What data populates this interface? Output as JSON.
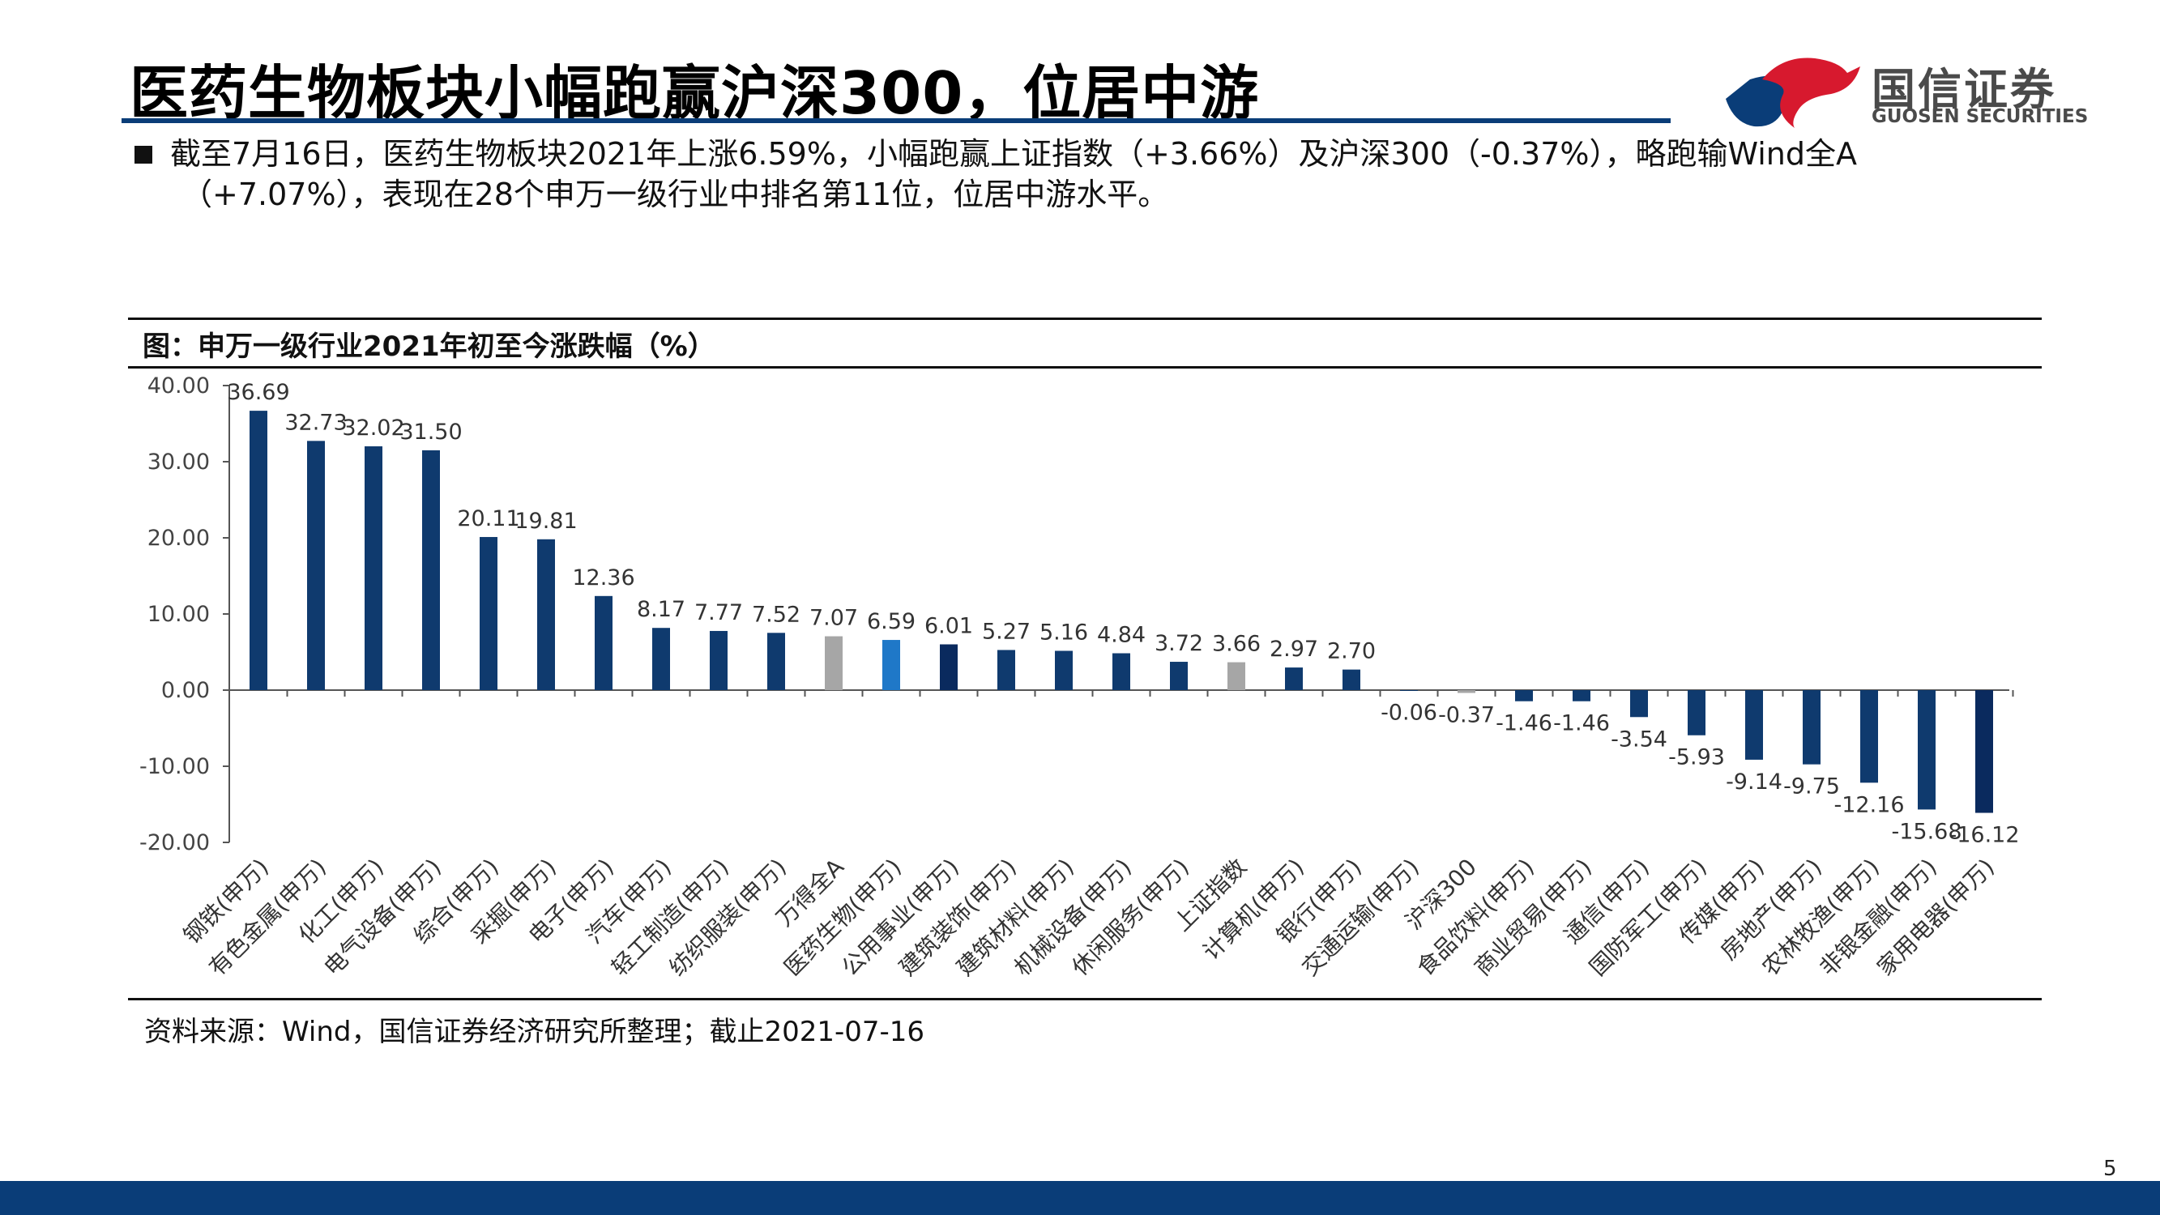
{
  "page": {
    "title": "医药生物板块小幅跑赢沪深300，位居中游",
    "bullet_line1": "截至7月16日，医药生物板块2021年上涨6.59%，小幅跑赢上证指数（+3.66%）及沪深300（-0.37%），略跑输Wind全A",
    "bullet_line2": "（+7.07%），表现在28个申万一级行业中排名第11位，位居中游水平。",
    "chart_caption": "图：申万一级行业2021年初至今涨跌幅（%）",
    "source": "资料来源：Wind，国信证券经济研究所整理；截止2021-07-16",
    "page_number": "5"
  },
  "logo": {
    "name_cn": "国信证券",
    "name_en": "GUOSEN SECURITIES"
  },
  "colors": {
    "default_bar": "#0f3a6e",
    "highlight_bar": "#1f78c8",
    "benchmark_bar": "#a6a6a6",
    "accent_dark": "#0a2a5e",
    "brand_red": "#d7192e",
    "brand_blue": "#0a3d78"
  },
  "chart_data": {
    "type": "bar",
    "ylim": [
      -20,
      40
    ],
    "yticks": [
      40,
      30,
      20,
      10,
      0,
      -10,
      -20
    ],
    "ytick_labels": [
      "40.00",
      "30.00",
      "20.00",
      "10.00",
      "0.00",
      "-10.00",
      "-20.00"
    ],
    "categories": [
      "钢铁(申万)",
      "有色金属(申万)",
      "化工(申万)",
      "电气设备(申万)",
      "综合(申万)",
      "采掘(申万)",
      "电子(申万)",
      "汽车(申万)",
      "轻工制造(申万)",
      "纺织服装(申万)",
      "万得全A",
      "医药生物(申万)",
      "公用事业(申万)",
      "建筑装饰(申万)",
      "建筑材料(申万)",
      "机械设备(申万)",
      "休闲服务(申万)",
      "上证指数",
      "计算机(申万)",
      "银行(申万)",
      "交通运输(申万)",
      "沪深300",
      "食品饮料(申万)",
      "商业贸易(申万)",
      "通信(申万)",
      "国防军工(申万)",
      "传媒(申万)",
      "房地产(申万)",
      "农林牧渔(申万)",
      "非银金融(申万)",
      "家用电器(申万)"
    ],
    "values": [
      36.69,
      32.73,
      32.02,
      31.5,
      20.11,
      19.81,
      12.36,
      8.17,
      7.77,
      7.52,
      7.07,
      6.59,
      6.01,
      5.27,
      5.16,
      4.84,
      3.72,
      3.66,
      2.97,
      2.7,
      -0.06,
      -0.37,
      -1.46,
      -1.46,
      -3.54,
      -5.93,
      -9.14,
      -9.75,
      -12.16,
      -15.68,
      -16.12
    ],
    "labels": [
      "36.69",
      "32.73",
      "32.02",
      "31.50",
      "20.11",
      "19.81",
      "12.36",
      "8.17",
      "7.77",
      "7.52",
      "7.07",
      "6.59",
      "6.01",
      "5.27",
      "5.16",
      "4.84",
      "3.72",
      "3.66",
      "2.97",
      "2.70",
      "-0.06",
      "-0.37",
      "-1.46",
      "-1.46",
      "-3.54",
      "-5.93",
      "-9.14",
      "-9.75",
      "-12.16",
      "-15.68",
      "-16.12"
    ],
    "bar_colors": [
      "#0f3a6e",
      "#0f3a6e",
      "#0f3a6e",
      "#0f3a6e",
      "#0f3a6e",
      "#0f3a6e",
      "#0f3a6e",
      "#0f3a6e",
      "#0f3a6e",
      "#0f3a6e",
      "#a6a6a6",
      "#1f78c8",
      "#0a2a5e",
      "#0f3a6e",
      "#0f3a6e",
      "#0f3a6e",
      "#0f3a6e",
      "#a6a6a6",
      "#0f3a6e",
      "#0f3a6e",
      "#0f3a6e",
      "#a6a6a6",
      "#0f3a6e",
      "#0f3a6e",
      "#0f3a6e",
      "#0f3a6e",
      "#0f3a6e",
      "#0f3a6e",
      "#0f3a6e",
      "#0f3a6e",
      "#0a2a5e"
    ],
    "grid": false,
    "legend": "none"
  }
}
